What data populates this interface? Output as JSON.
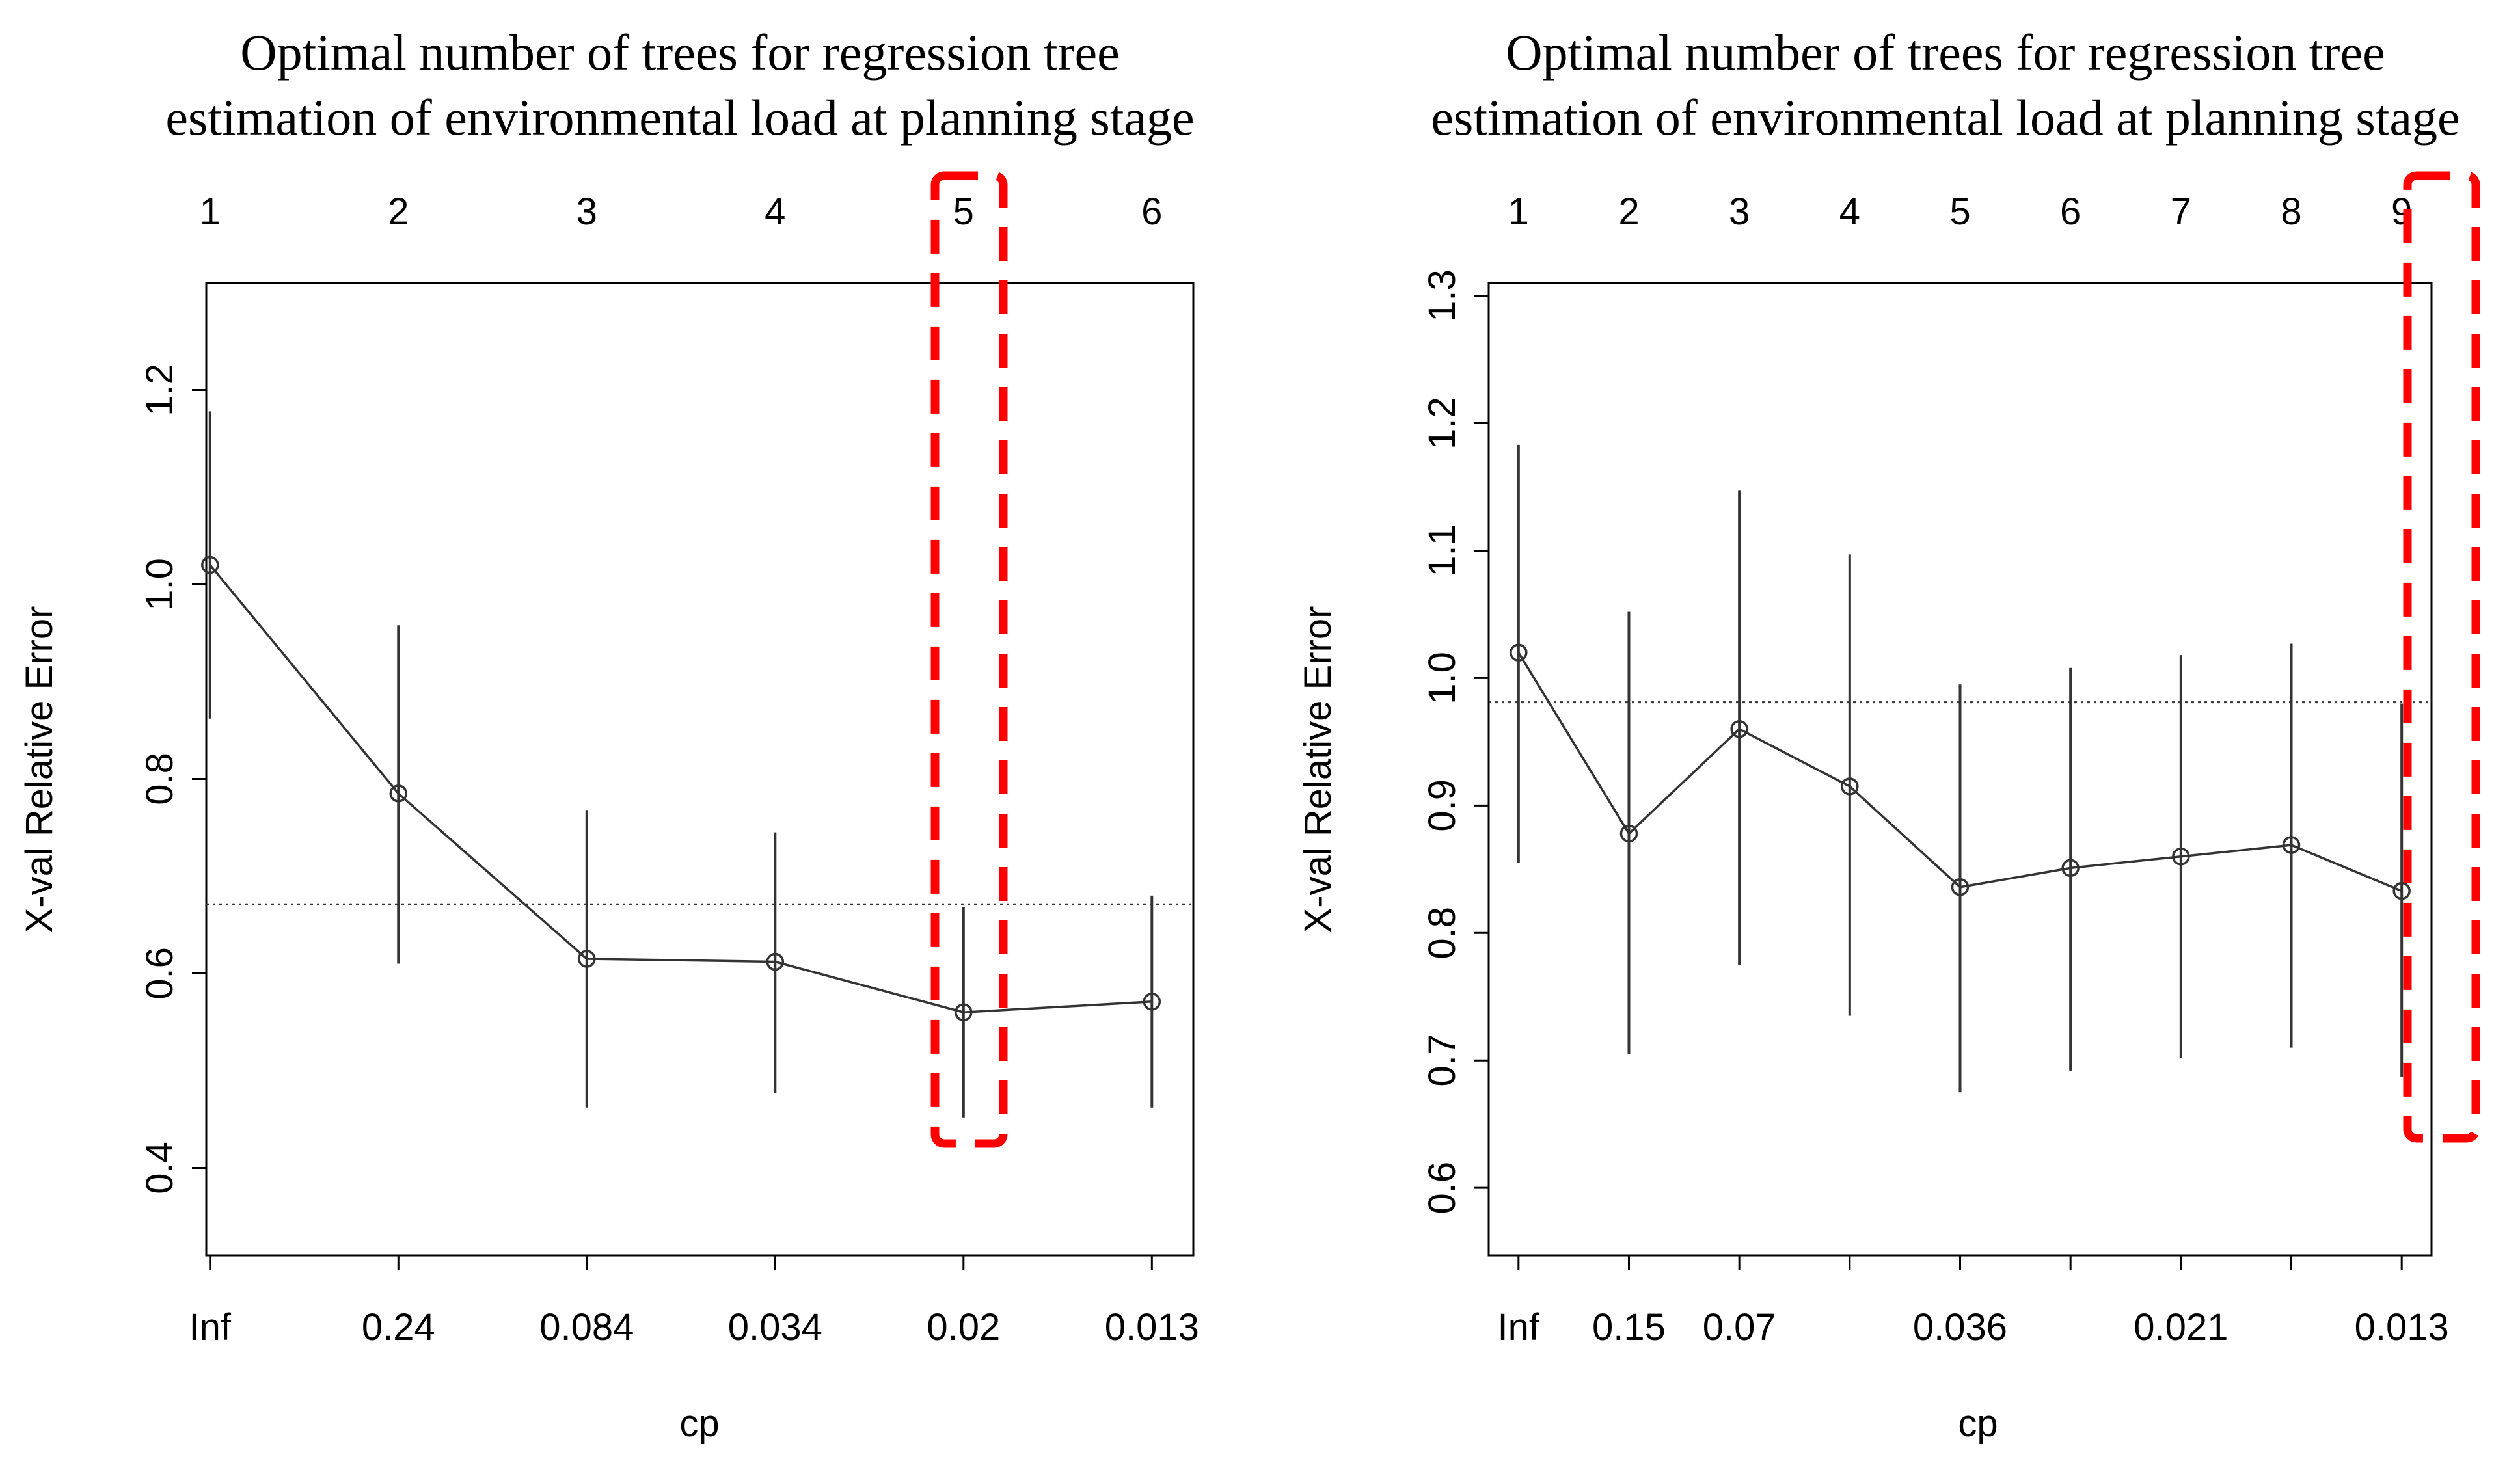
{
  "chart_data": [
    {
      "type": "line",
      "title_lines": [
        "Optimal number of trees for regression tree",
        "estimation of environmental load at planning stage"
      ],
      "xlabel": "cp",
      "ylabel": "X-val Relative Error",
      "top_axis_labels": [
        "1",
        "2",
        "3",
        "4",
        "5",
        "6"
      ],
      "bottom_axis_labels": [
        "Inf",
        "0.24",
        "0.084",
        "0.034",
        "0.02",
        "0.013"
      ],
      "x": [
        1,
        2,
        3,
        4,
        5,
        6
      ],
      "y": [
        1.02,
        0.785,
        0.615,
        0.612,
        0.56,
        0.571
      ],
      "error_low": [
        0.862,
        0.61,
        0.462,
        0.477,
        0.452,
        0.462
      ],
      "error_high": [
        1.178,
        0.958,
        0.768,
        0.745,
        0.668,
        0.68
      ],
      "xlim": [
        0.98,
        6.22
      ],
      "ylim": [
        0.31,
        1.31
      ],
      "yticks": [
        0.4,
        0.6,
        0.8,
        1.0,
        1.2
      ],
      "ytick_labels": [
        "0.4",
        "0.6",
        "0.8",
        "1.0",
        "1.2"
      ],
      "reference_line": 0.671,
      "highlight_x": 5
    },
    {
      "type": "line",
      "title_lines": [
        "Optimal number of trees for regression tree",
        "estimation of environmental load at planning stage"
      ],
      "xlabel": "cp",
      "ylabel": "X-val Relative Error",
      "top_axis_labels": [
        "1",
        "2",
        "3",
        "4",
        "5",
        "6",
        "7",
        "8",
        "9"
      ],
      "bottom_axis_labels": [
        "Inf",
        "0.15",
        "0.07",
        "",
        "0.036",
        "",
        "0.021",
        "",
        "0.013"
      ],
      "x": [
        1,
        2,
        3,
        4,
        5,
        6,
        7,
        8,
        9
      ],
      "y": [
        1.02,
        0.878,
        0.96,
        0.915,
        0.836,
        0.851,
        0.86,
        0.869,
        0.833
      ],
      "error_low": [
        0.855,
        0.705,
        0.775,
        0.735,
        0.675,
        0.692,
        0.702,
        0.71,
        0.687
      ],
      "error_high": [
        1.183,
        1.052,
        1.147,
        1.097,
        0.995,
        1.008,
        1.018,
        1.027,
        0.98
      ],
      "xlim": [
        0.73,
        9.27
      ],
      "ylim": [
        0.547,
        1.31
      ],
      "yticks": [
        0.6,
        0.7,
        0.8,
        0.9,
        1.0,
        1.1,
        1.2,
        1.3
      ],
      "ytick_labels": [
        "0.6",
        "0.7",
        "0.8",
        "0.9",
        "1.0",
        "1.1",
        "1.2",
        "1.3"
      ],
      "reference_line": 0.981,
      "highlight_x": 9
    }
  ]
}
